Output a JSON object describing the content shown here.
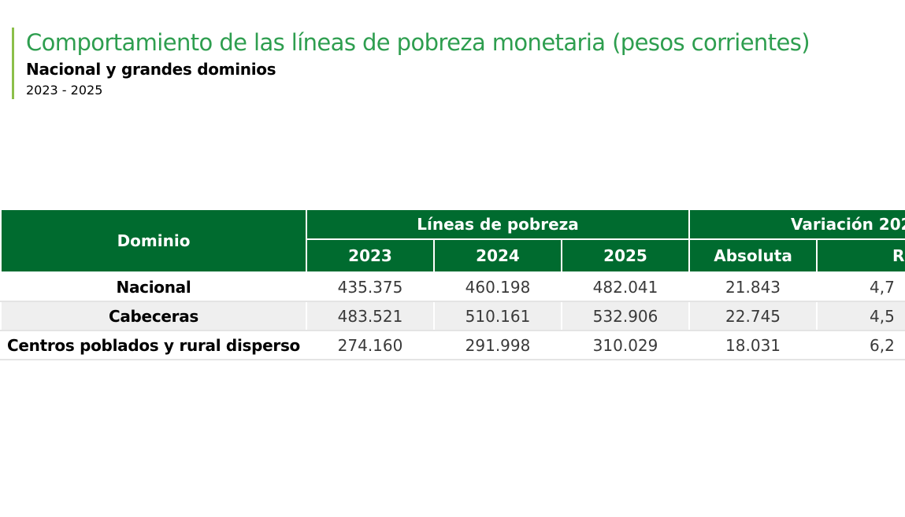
{
  "header": {
    "title": "Comportamiento de las líneas de pobreza monetaria (pesos corrientes)",
    "subtitle": "Nacional y grandes dominios",
    "years": "2023 - 2025",
    "accent_color": "#8cbf4a",
    "title_color": "#2e9e4f"
  },
  "table": {
    "header_color": "#006b2f",
    "col_dominio": "Dominio",
    "group_lineas": "Líneas de pobreza",
    "group_variacion": "Variación 202",
    "sub_headers": [
      "2023",
      "2024",
      "2025",
      "Absoluta",
      "R"
    ],
    "rows": [
      {
        "dominio": "Nacional",
        "y2023": "435.375",
        "y2024": "460.198",
        "y2025": "482.041",
        "absoluta": "21.843",
        "relativa": "4,7"
      },
      {
        "dominio": "Cabeceras",
        "y2023": "483.521",
        "y2024": "510.161",
        "y2025": "532.906",
        "absoluta": "22.745",
        "relativa": "4,5"
      },
      {
        "dominio": "Centros poblados y rural disperso",
        "y2023": "274.160",
        "y2024": "291.998",
        "y2025": "310.029",
        "absoluta": "18.031",
        "relativa": "6,2"
      }
    ]
  }
}
